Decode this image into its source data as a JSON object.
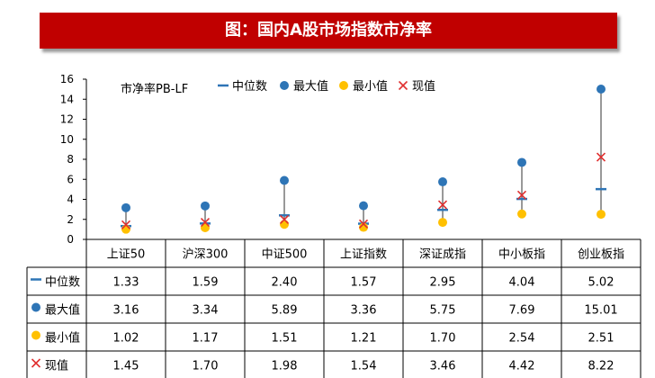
{
  "header": {
    "title": "图：国内A股市场指数市净率"
  },
  "colors": {
    "banner": "#c00000",
    "median": "#2e75b6",
    "max": "#2e75b6",
    "min": "#ffc000",
    "current": "#e03030",
    "range_line": "#555555"
  },
  "chart_data": {
    "type": "scatter",
    "title": "",
    "axis_label": "市净率PB-LF",
    "ylim": [
      0,
      16
    ],
    "yticks": [
      0,
      2,
      4,
      6,
      8,
      10,
      12,
      14,
      16
    ],
    "categories": [
      "上证50",
      "沪深300",
      "中证500",
      "上证指数",
      "深证成指",
      "中小板指",
      "创业板指"
    ],
    "series": [
      {
        "name": "中位数",
        "symbol": "dash",
        "values": [
          1.33,
          1.59,
          2.4,
          1.57,
          2.95,
          4.04,
          5.02
        ]
      },
      {
        "name": "最大值",
        "symbol": "circle-blue",
        "values": [
          3.16,
          3.34,
          5.89,
          3.36,
          5.75,
          7.69,
          15.01
        ]
      },
      {
        "name": "最小值",
        "symbol": "circle-yellow",
        "values": [
          1.02,
          1.17,
          1.51,
          1.21,
          1.7,
          2.54,
          2.51
        ]
      },
      {
        "name": "现值",
        "symbol": "cross",
        "values": [
          1.45,
          1.7,
          1.98,
          1.54,
          3.46,
          4.42,
          8.22
        ]
      }
    ],
    "table_values": [
      [
        "1.33",
        "1.59",
        "2.40",
        "1.57",
        "2.95",
        "4.04",
        "5.02"
      ],
      [
        "3.16",
        "3.34",
        "5.89",
        "3.36",
        "5.75",
        "7.69",
        "15.01"
      ],
      [
        "1.02",
        "1.17",
        "1.51",
        "1.21",
        "1.70",
        "2.54",
        "2.51"
      ],
      [
        "1.45",
        "1.70",
        "1.98",
        "1.54",
        "3.46",
        "4.42",
        "8.22"
      ]
    ],
    "legend_position": "top"
  }
}
